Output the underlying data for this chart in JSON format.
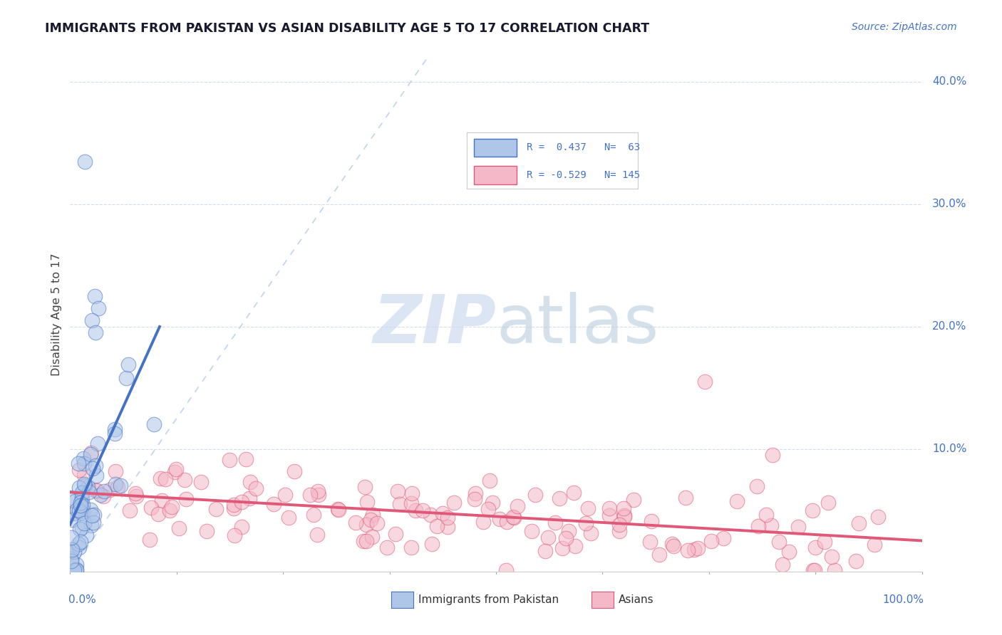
{
  "title": "IMMIGRANTS FROM PAKISTAN VS ASIAN DISABILITY AGE 5 TO 17 CORRELATION CHART",
  "source": "Source: ZipAtlas.com",
  "ylabel": "Disability Age 5 to 17",
  "ytick_vals": [
    0.0,
    0.1,
    0.2,
    0.3,
    0.4
  ],
  "ytick_labels": [
    "",
    "10.0%",
    "20.0%",
    "30.0%",
    "40.0%"
  ],
  "xlim": [
    0.0,
    1.0
  ],
  "ylim": [
    0.0,
    0.42
  ],
  "watermark": "ZIPatlas",
  "background_color": "#ffffff",
  "grid_color": "#d0d8e8",
  "title_color": "#1a1a2e",
  "axis_label_color": "#4472c4",
  "blue_scatter_color": "#aec6e8",
  "blue_line_color": "#4472c4",
  "pink_scatter_color": "#f4b8c8",
  "pink_line_color": "#e05878",
  "dashed_line_color": "#b8cce4",
  "R_blue": 0.437,
  "N_blue": 63,
  "R_pink": -0.529,
  "N_pink": 145,
  "legend_blue_text": "R =  0.437   N=  63",
  "legend_pink_text": "R = -0.529   N= 145",
  "bottom_legend_blue": "Immigrants from Pakistan",
  "bottom_legend_pink": "Asians"
}
